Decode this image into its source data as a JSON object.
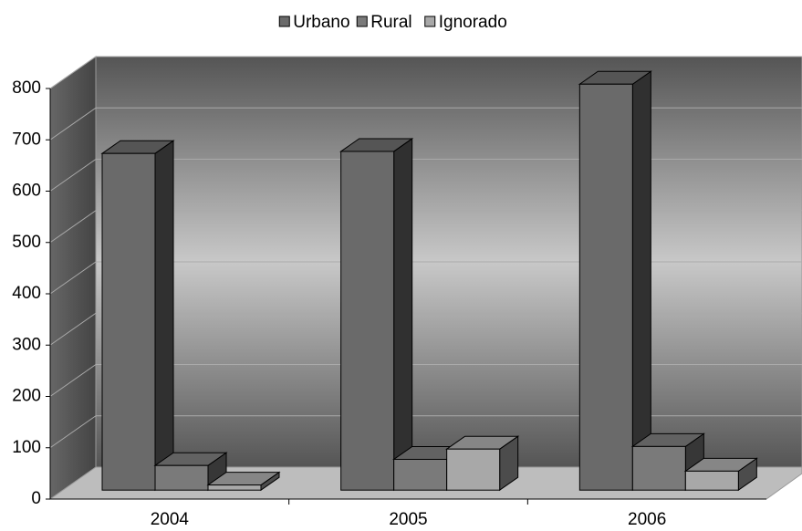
{
  "chart_data": {
    "type": "bar3d",
    "categories": [
      "2004",
      "2005",
      "2006"
    ],
    "series": [
      {
        "name": "Urbano",
        "color": "#6a6a6a",
        "values": [
          656,
          660,
          791
        ]
      },
      {
        "name": "Rural",
        "color": "#7a7a7a",
        "values": [
          48,
          60,
          85
        ]
      },
      {
        "name": "Ignorado",
        "color": "#a8a8a8",
        "values": [
          10,
          80,
          37
        ]
      }
    ],
    "ylim": [
      0,
      800
    ],
    "yticks": [
      0,
      100,
      200,
      300,
      400,
      500,
      600,
      700,
      800
    ],
    "grid": true,
    "legend": "top"
  }
}
